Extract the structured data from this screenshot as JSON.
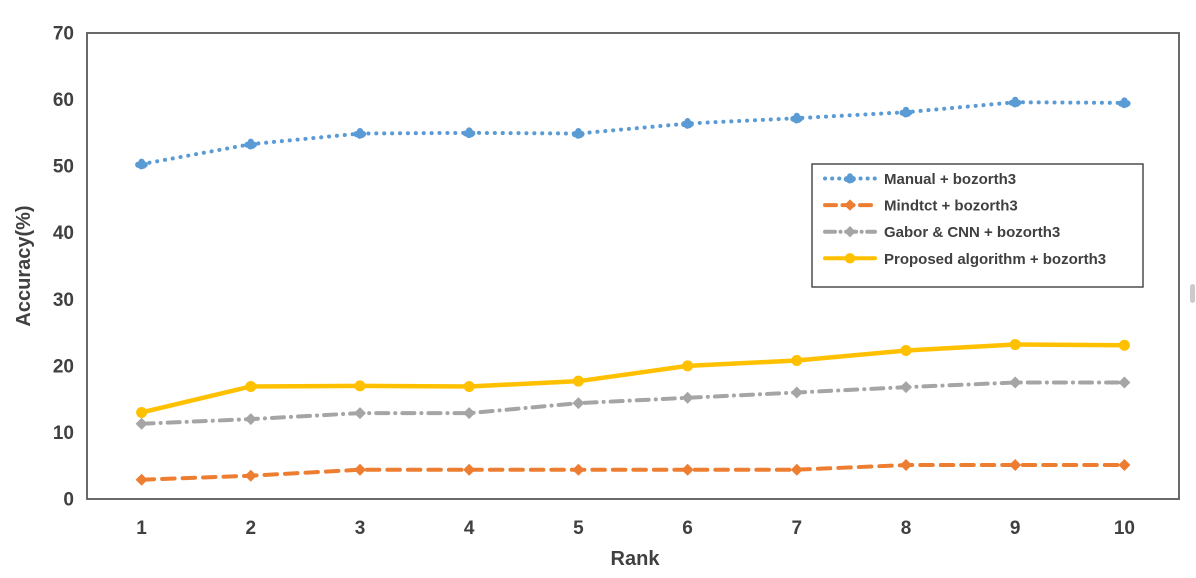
{
  "chart_data": {
    "type": "line",
    "title": "",
    "xlabel": "Rank",
    "ylabel": "Accuracy(%)",
    "x": [
      1,
      2,
      3,
      4,
      5,
      6,
      7,
      8,
      9,
      10
    ],
    "x_tick_labels": [
      "1",
      "2",
      "3",
      "4",
      "5",
      "6",
      "7",
      "8",
      "9",
      "10"
    ],
    "ylim": [
      0,
      70
    ],
    "yticks": [
      0,
      10,
      20,
      30,
      40,
      50,
      60,
      70
    ],
    "y_tick_labels": [
      "0",
      "10",
      "20",
      "30",
      "40",
      "50",
      "60",
      "70"
    ],
    "grid": false,
    "legend": {
      "position": "inside-right",
      "entries": [
        "Manual + bozorth3",
        "Mindtct + bozorth3",
        "Gabor & CNN + bozorth3",
        "Proposed algorithm + bozorth3"
      ]
    },
    "series": [
      {
        "name": "Manual + bozorth3",
        "color": "#5B9BD5",
        "line_style": "dotted",
        "marker": "cluster",
        "values": [
          50.3,
          53.3,
          54.9,
          55.0,
          54.9,
          56.4,
          57.2,
          58.1,
          59.6,
          59.5
        ]
      },
      {
        "name": "Mindtct + bozorth3",
        "color": "#ED7D31",
        "line_style": "dashed",
        "marker": "diamond",
        "values": [
          2.9,
          3.5,
          4.4,
          4.4,
          4.4,
          4.4,
          4.4,
          5.1,
          5.1,
          5.1
        ]
      },
      {
        "name": "Gabor & CNN + bozorth3",
        "color": "#A5A5A5",
        "line_style": "dashdot",
        "marker": "diamond",
        "values": [
          11.3,
          12.0,
          12.9,
          12.9,
          14.4,
          15.2,
          16.0,
          16.8,
          17.5,
          17.5
        ]
      },
      {
        "name": "Proposed algorithm + bozorth3",
        "color": "#FFC000",
        "line_style": "solid",
        "marker": "circle",
        "values": [
          13.0,
          16.9,
          17.0,
          16.9,
          17.7,
          20.0,
          20.8,
          22.3,
          23.2,
          23.1
        ]
      }
    ]
  },
  "colors": {
    "background": "#FFFFFF",
    "axis_text": "#404040",
    "plot_border": "#595959",
    "legend_border": "#404040"
  }
}
